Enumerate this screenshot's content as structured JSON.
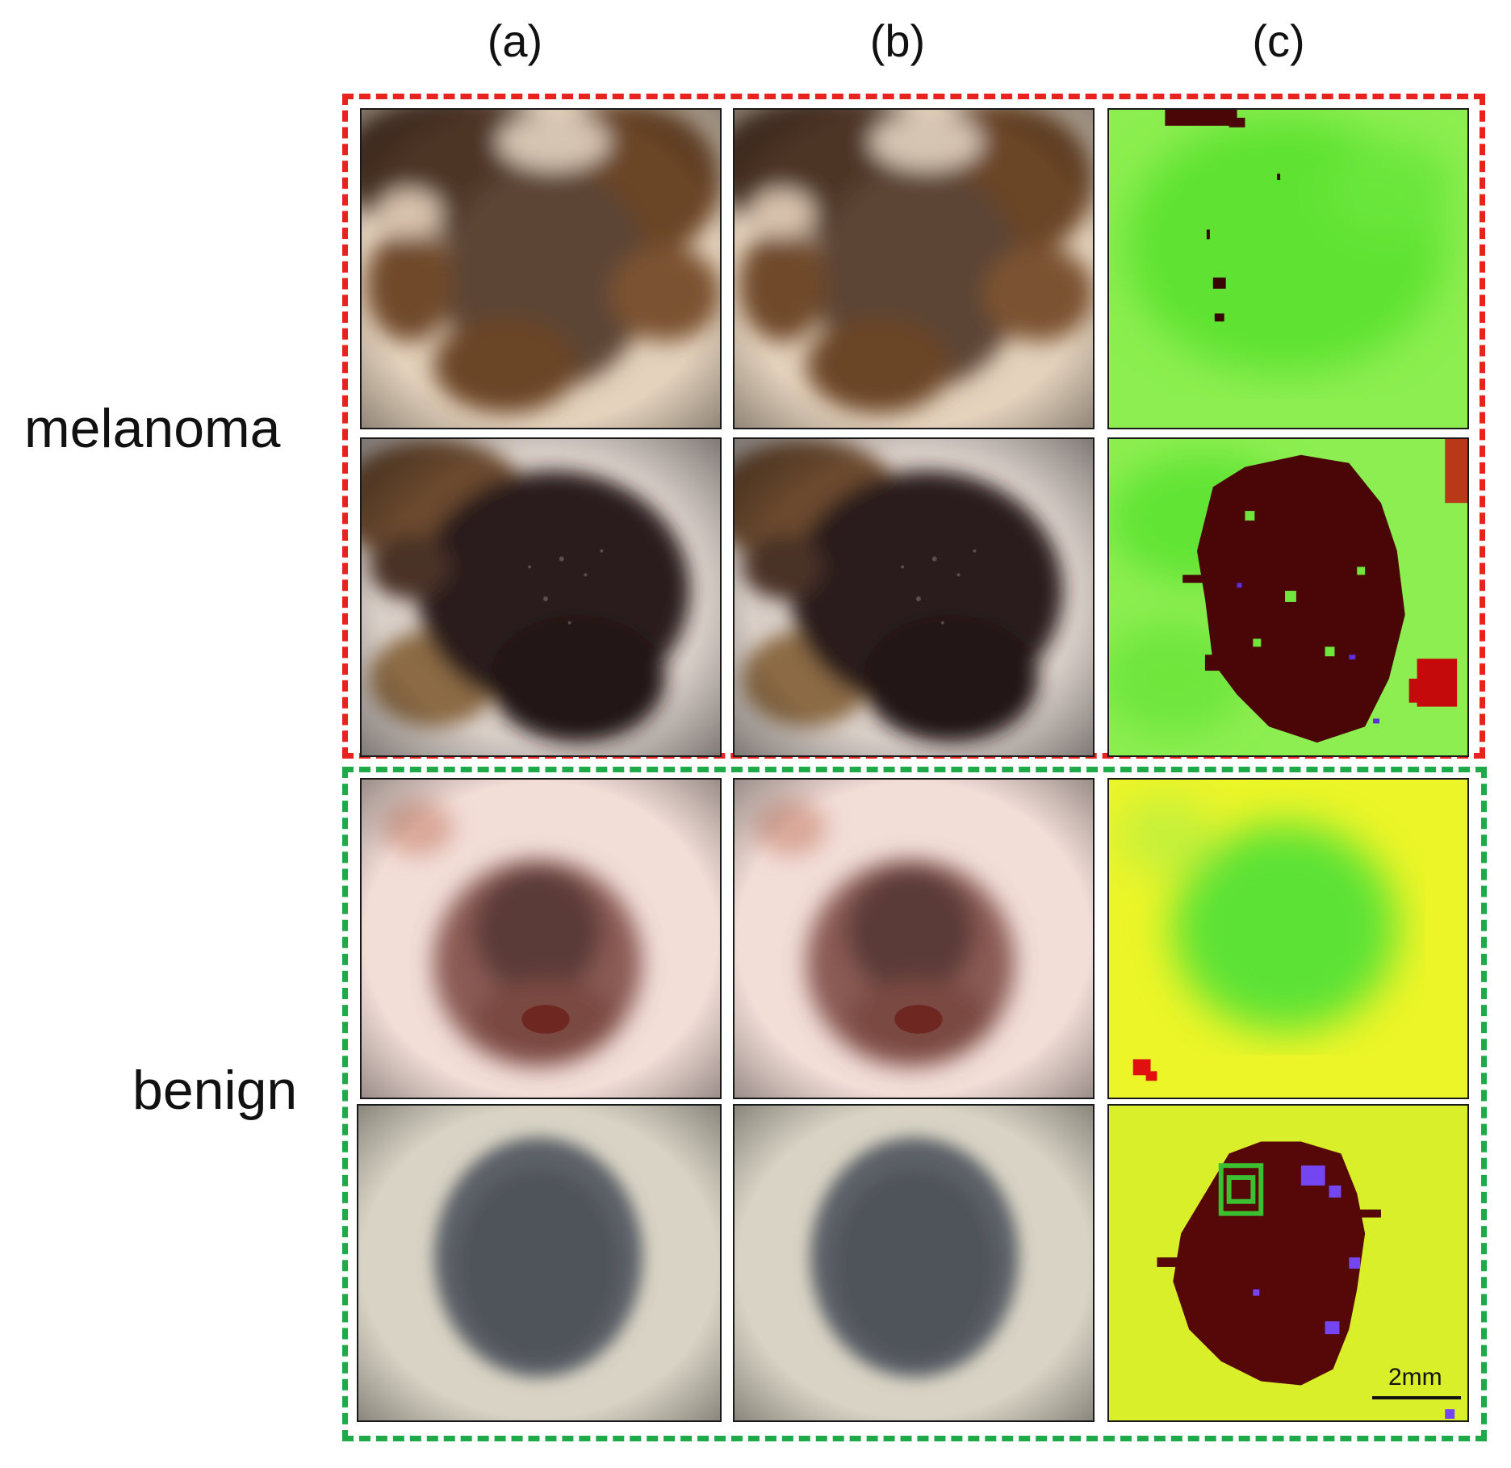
{
  "figure": {
    "columns": [
      {
        "label": "(a)"
      },
      {
        "label": "(b)"
      },
      {
        "label": "(c)"
      }
    ],
    "groups": [
      {
        "label": "melanoma",
        "border_color": "#e8231f"
      },
      {
        "label": "benign",
        "border_color": "#1faa4a"
      }
    ],
    "scale_bar": {
      "label": "2mm"
    },
    "colors": {
      "map_green": "#6ee83a",
      "map_yellow": "#ecf528",
      "map_darkred": "#4a0606",
      "map_red": "#d80c0c",
      "map_blue": "#6a3cf0"
    }
  }
}
